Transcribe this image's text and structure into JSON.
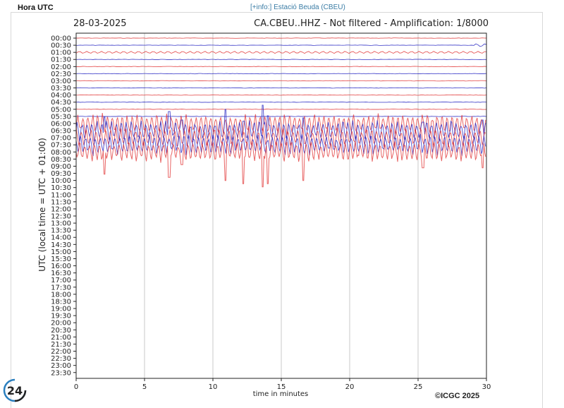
{
  "header": {
    "left_label": "Hora UTC",
    "info_link": "[+info:] Estació Beuda (CBEU)"
  },
  "plot": {
    "date": "28-03-2025",
    "station_info": "CA.CBEU..HHZ - Not filtered - Amplification: 1/8000",
    "copyright": "©ICGC 2025",
    "badge": "24"
  },
  "colors": {
    "even_trace": "#e03030",
    "odd_trace": "#2020c0",
    "grid": "#c8c8c8",
    "link": "#3a7ca5"
  },
  "chart_data": {
    "type": "line",
    "title": "CA.CBEU..HHZ - Not filtered - Amplification: 1/8000",
    "subtitle": "28-03-2025",
    "xlabel": "time in minutes",
    "ylabel": "UTC (local time = UTC + 01:00)",
    "xlim": [
      0,
      30
    ],
    "x_ticks": [
      0,
      5,
      10,
      15,
      20,
      25,
      30
    ],
    "y_ticks": [
      "00:00",
      "00:30",
      "01:00",
      "01:30",
      "02:00",
      "02:30",
      "03:00",
      "03:30",
      "04:00",
      "04:30",
      "05:00",
      "05:30",
      "06:00",
      "06:30",
      "07:00",
      "07:30",
      "08:00",
      "08:30",
      "09:00",
      "09:30",
      "10:00",
      "10:30",
      "11:00",
      "11:30",
      "12:00",
      "12:30",
      "13:00",
      "13:30",
      "14:00",
      "14:30",
      "15:00",
      "15:30",
      "16:00",
      "16:30",
      "17:00",
      "17:30",
      "18:00",
      "18:30",
      "19:00",
      "19:30",
      "20:00",
      "20:30",
      "21:00",
      "21:30",
      "22:00",
      "22:30",
      "23:00",
      "23:30"
    ],
    "y_inverted": true,
    "grid": "vertical at x ticks",
    "series_color_pattern": "alternating red (hour rows) / blue (half-hour rows)",
    "traces_recorded_through": "08:00",
    "activity": [
      {
        "row": "01:00",
        "level": "low",
        "note": "small oscillation"
      },
      {
        "row": "00:30",
        "level": "low",
        "note": "small wiggle near x=29"
      },
      {
        "row": "06:00-08:00",
        "level": "high",
        "note": "large-amplitude oscillations across full window, spikes near x=7, 10.5, 13.8, 16.5, 29.5"
      }
    ]
  }
}
